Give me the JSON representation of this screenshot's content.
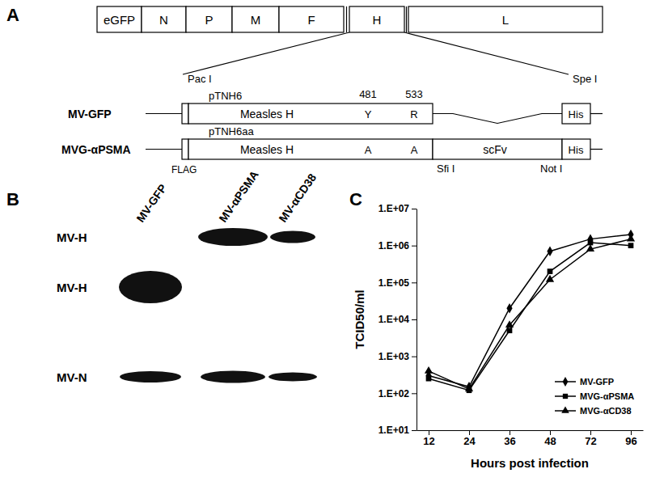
{
  "panel_labels": [
    "A",
    "B",
    "C"
  ],
  "diagram": {
    "genome": [
      "eGFP",
      "N",
      "P",
      "M",
      "F",
      "H",
      "L"
    ],
    "residue_numbers": [
      481,
      533
    ],
    "constructs": [
      {
        "name": "MV-GFP",
        "plasmid": "pTNH6",
        "gene": "Measles H",
        "residues": [
          "Y",
          "R"
        ],
        "tag": "His",
        "sites": [
          "Pac I",
          "Spe I"
        ]
      },
      {
        "name": "MVG-αPSMA",
        "plasmid": "pTNH6aa",
        "gene": "Measles H",
        "residues": [
          "A",
          "A"
        ],
        "insert": "scFv",
        "tag": "His",
        "sites": [
          "FLAG",
          "Sfi I",
          "Not I"
        ]
      }
    ]
  },
  "blot": {
    "lanes": [
      "MV-GFP",
      "MV-αPSMA",
      "MV-αCD38"
    ],
    "rows": [
      {
        "label": "MV-H",
        "present": [
          false,
          true,
          true
        ]
      },
      {
        "label": "MV-H",
        "present": [
          true,
          false,
          false
        ]
      },
      {
        "label": "MV-N",
        "present": [
          true,
          true,
          true
        ]
      }
    ]
  },
  "chart_data": {
    "type": "line",
    "x_label": "Hours post infection",
    "y_label": "TCID50/ml",
    "categories": [
      "12",
      "24",
      "36",
      "48",
      "72",
      "96"
    ],
    "log": "y",
    "grid": false,
    "legend": "right",
    "ylim": [
      10,
      10000000
    ],
    "yticks": [
      {
        "value": 10,
        "label": "1.E+01"
      },
      {
        "value": 100,
        "label": "1.E+02"
      },
      {
        "value": 1000,
        "label": "1.E+03"
      },
      {
        "value": 10000,
        "label": "1.E+04"
      },
      {
        "value": 100000,
        "label": "1.E+05"
      },
      {
        "value": 1000000,
        "label": "1.E+06"
      },
      {
        "value": 10000000,
        "label": "1.E+07"
      }
    ],
    "series": [
      {
        "name": "MV-GFP",
        "color": "#000000",
        "marker": "diamond",
        "values": [
          300,
          150,
          20000,
          700000,
          1500000,
          2000000
        ]
      },
      {
        "name": "MVG-αPSMA",
        "color": "#000000",
        "marker": "square",
        "values": [
          250,
          120,
          5000,
          200000,
          1200000,
          1000000
        ]
      },
      {
        "name": "MVG-αCD38",
        "color": "#000000",
        "marker": "triangle",
        "values": [
          400,
          130,
          7000,
          120000,
          800000,
          1500000
        ]
      }
    ]
  }
}
